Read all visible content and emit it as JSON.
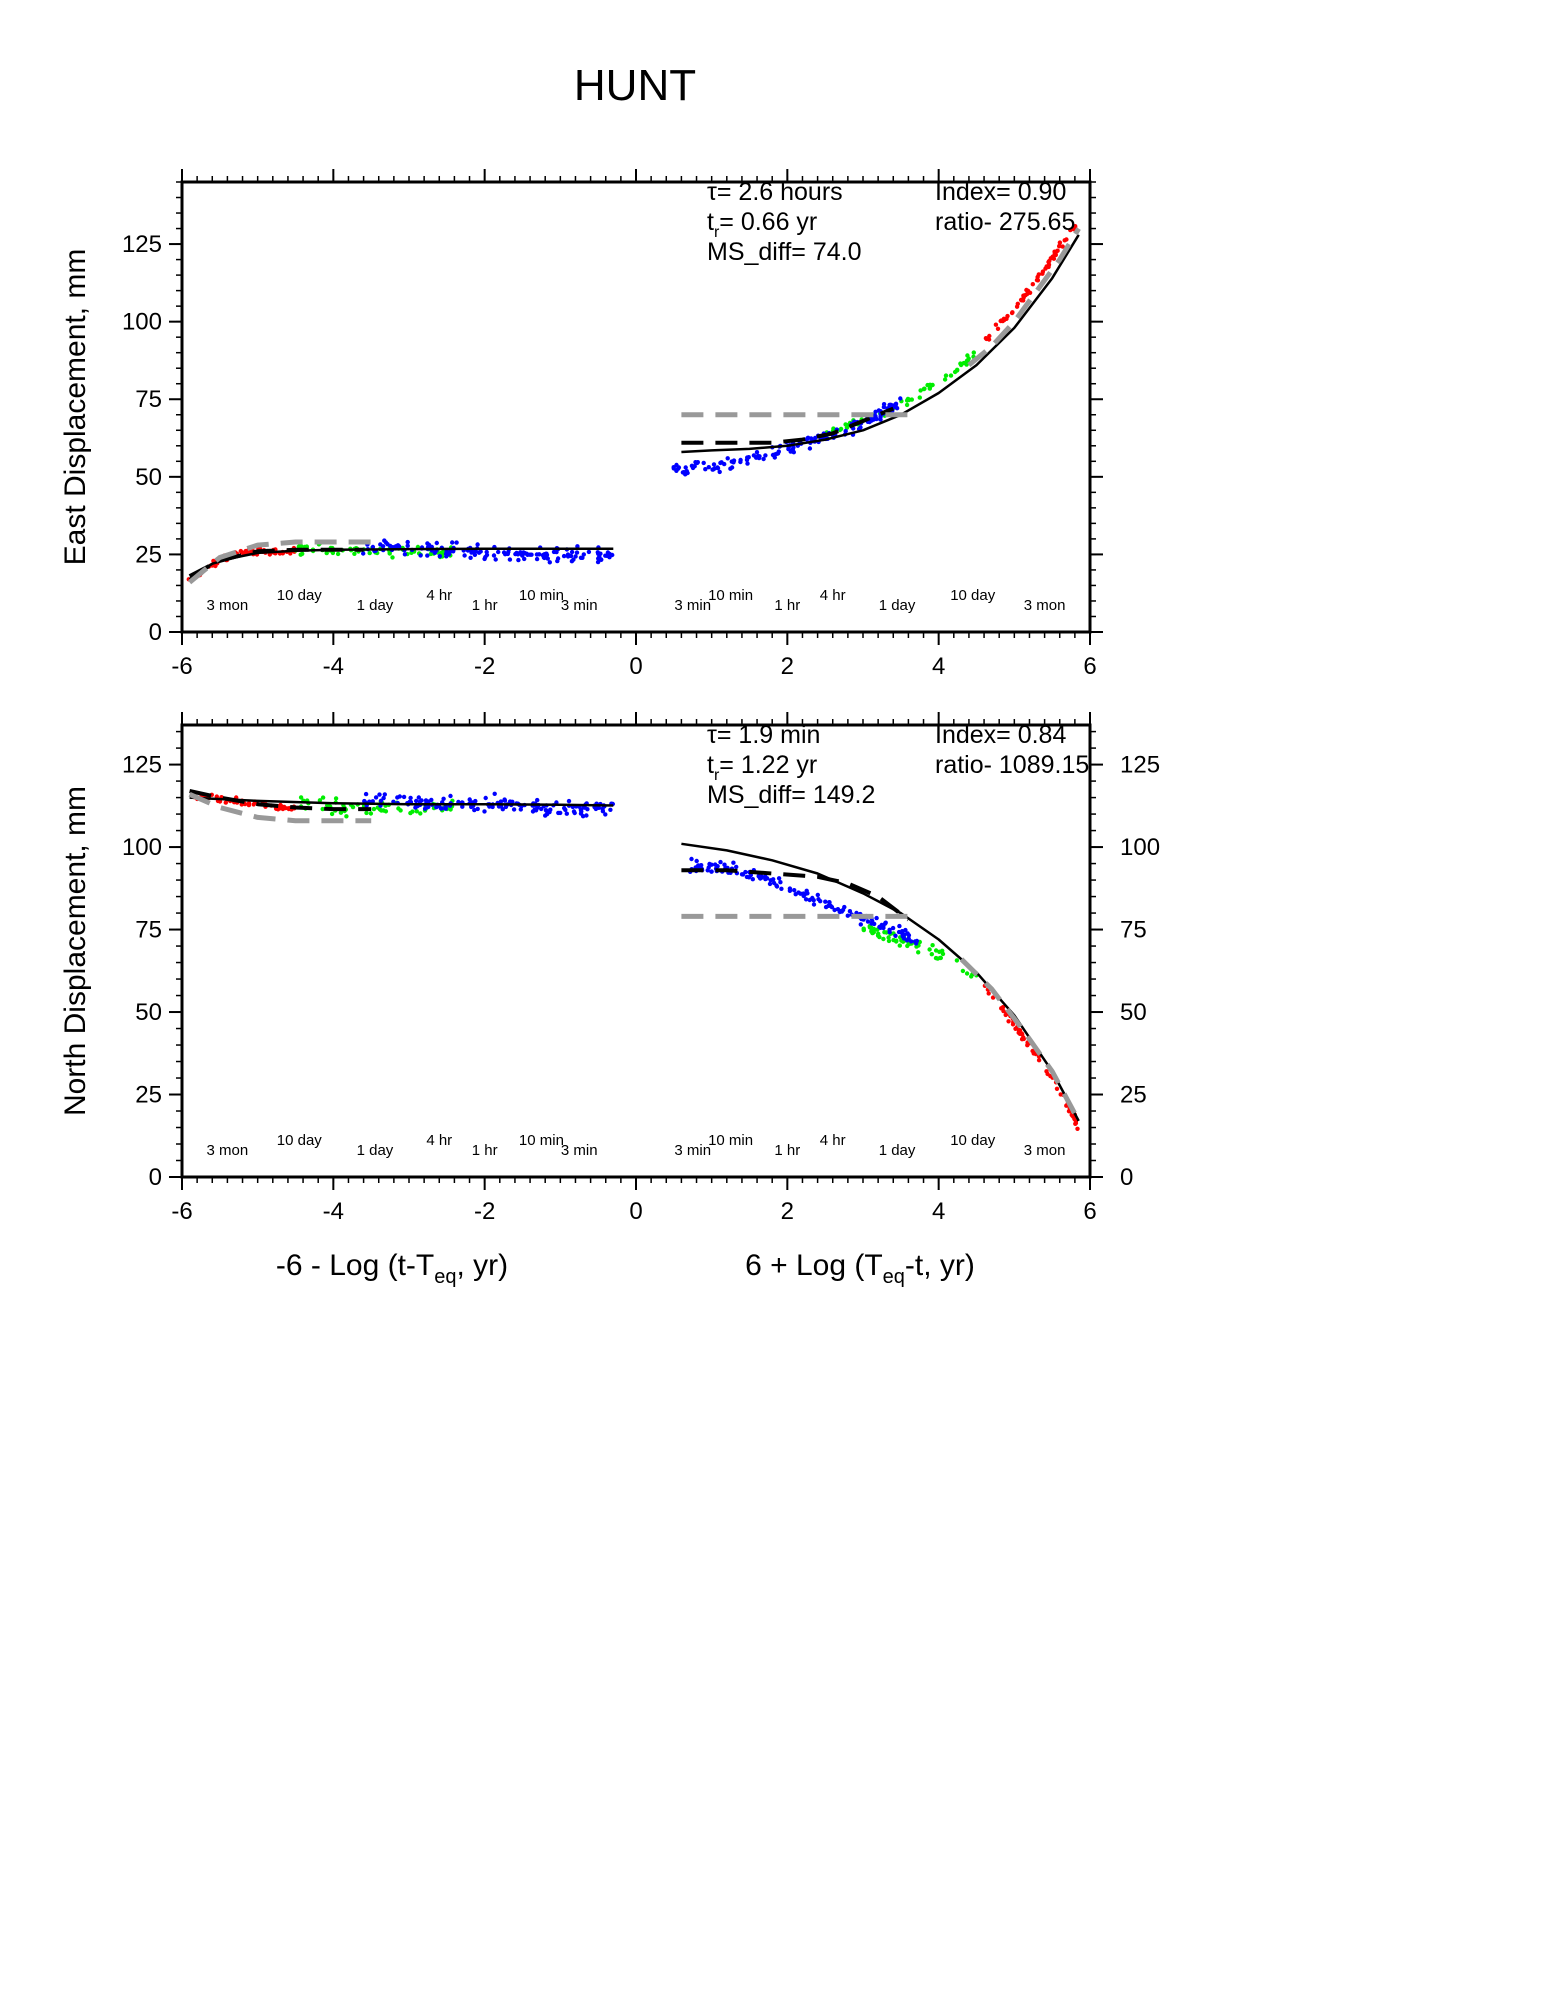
{
  "figure": {
    "title": "HUNT"
  },
  "chart_data": [
    {
      "type": "scatter",
      "ylabel": "East Displacement, mm",
      "xlim": [
        -6,
        6
      ],
      "ylim": [
        0,
        145
      ],
      "x_ticks": [
        -6,
        -4,
        -2,
        0,
        2,
        4,
        6
      ],
      "y_ticks": [
        0,
        25,
        50,
        75,
        100,
        125
      ],
      "annotations": {
        "tau": "τ= 2.6 hours",
        "tr_prefix": "t",
        "tr_sub": "r",
        "tr_value": "= 0.66 yr",
        "ms_diff": "MS_diff= 74.0",
        "index": "Index= 0.90",
        "ratio": "ratio- 275.65"
      },
      "time_labels": [
        {
          "x": -5.4,
          "label": "3 mon",
          "row": "low"
        },
        {
          "x": -4.45,
          "label": "10 day",
          "row": "high"
        },
        {
          "x": -3.45,
          "label": "1 day",
          "row": "low"
        },
        {
          "x": -2.6,
          "label": "4 hr",
          "row": "high"
        },
        {
          "x": -2.0,
          "label": "1 hr",
          "row": "low"
        },
        {
          "x": -1.25,
          "label": "10 min",
          "row": "high"
        },
        {
          "x": -0.75,
          "label": "3 min",
          "row": "low"
        },
        {
          "x": 0.75,
          "label": "3 min",
          "row": "low"
        },
        {
          "x": 1.25,
          "label": "10 min",
          "row": "high"
        },
        {
          "x": 2.0,
          "label": "1 hr",
          "row": "low"
        },
        {
          "x": 2.6,
          "label": "4 hr",
          "row": "high"
        },
        {
          "x": 3.45,
          "label": "1 day",
          "row": "low"
        },
        {
          "x": 4.45,
          "label": "10 day",
          "row": "high"
        },
        {
          "x": 5.4,
          "label": "3 mon",
          "row": "low"
        }
      ],
      "series": [
        {
          "color": "#ff0000",
          "segments": [
            {
              "x": [
                -5.9,
                -5.7,
                -5.5,
                -5.3,
                -5.1,
                -4.9,
                -4.7,
                -4.5
              ],
              "y": [
                16,
                20,
                23,
                25,
                26,
                26,
                26,
                26
              ],
              "jitter": 1.5,
              "n": 70
            },
            {
              "x": [
                4.6,
                4.8,
                5.0,
                5.2,
                5.4,
                5.6,
                5.8
              ],
              "y": [
                94,
                99,
                104,
                110,
                117,
                124,
                131
              ],
              "jitter": 1.5,
              "n": 60
            }
          ]
        },
        {
          "color": "#00ee00",
          "segments": [
            {
              "x": [
                -4.5,
                -4.2,
                -3.9,
                -3.6,
                -3.3,
                -3.0,
                -2.7,
                -2.4
              ],
              "y": [
                27,
                27,
                26,
                27,
                26,
                26,
                26,
                26
              ],
              "jitter": 2.5,
              "n": 70
            },
            {
              "x": [
                2.5,
                2.8,
                3.1,
                3.4,
                3.7,
                4.0,
                4.3,
                4.5
              ],
              "y": [
                64,
                66,
                69,
                72,
                76,
                81,
                86,
                90
              ],
              "jitter": 2.0,
              "n": 60
            }
          ]
        },
        {
          "color": "#0000ff",
          "segments": [
            {
              "x": [
                -3.6,
                -3.3,
                -3.0,
                -2.7,
                -2.4,
                -2.1,
                -1.8,
                -1.5,
                -1.2,
                -0.9,
                -0.6,
                -0.3
              ],
              "y": [
                27,
                28,
                27,
                26,
                26,
                26,
                25,
                25,
                25,
                25,
                25,
                25
              ],
              "jitter": 3.5,
              "n": 150
            },
            {
              "x": [
                0.5,
                0.8,
                1.1,
                1.4,
                1.7,
                2.0,
                2.3,
                2.6,
                2.9,
                3.2,
                3.5
              ],
              "y": [
                52,
                53,
                53,
                55,
                57,
                59,
                61,
                63,
                66,
                70,
                74
              ],
              "jitter": 3.0,
              "n": 150
            }
          ]
        }
      ],
      "fits": [
        {
          "style": "solid",
          "color": "#000000",
          "x": [
            -5.9,
            -5.6,
            -5.3,
            -5.0,
            -4.5,
            -4.0,
            -3.0,
            -2.0,
            -1.0,
            -0.3
          ],
          "y": [
            17,
            22,
            24,
            25.5,
            26.2,
            26.5,
            26.7,
            26.8,
            26.8,
            26.8
          ]
        },
        {
          "style": "solid",
          "color": "#000000",
          "x": [
            0.6,
            1.0,
            1.5,
            2.0,
            2.5,
            3.0,
            3.5,
            4.0,
            4.5,
            5.0,
            5.5,
            5.85
          ],
          "y": [
            58,
            58.5,
            59,
            60,
            62,
            65,
            70,
            77,
            86,
            98,
            114,
            128
          ]
        },
        {
          "style": "dash",
          "color": "#000000",
          "x": [
            -5.9,
            -5.5,
            -5.0,
            -4.5,
            -4.0,
            -3.6
          ],
          "y": [
            18,
            23,
            26,
            26.5,
            26.5,
            26.5
          ]
        },
        {
          "style": "dash",
          "color": "#000000",
          "x": [
            0.6,
            1.2,
            1.8,
            2.2,
            2.6,
            3.0,
            3.4
          ],
          "y": [
            61,
            61,
            61,
            62,
            64,
            68,
            72
          ]
        },
        {
          "style": "dash",
          "color": "#999999",
          "x": [
            -5.9,
            -5.5,
            -5.0,
            -4.5,
            -4.0,
            -3.5
          ],
          "y": [
            16,
            24,
            28,
            29,
            29,
            29
          ]
        },
        {
          "style": "dash",
          "color": "#999999",
          "x": [
            0.6,
            1.5,
            2.3,
            3.0,
            3.6
          ],
          "y": [
            70,
            70,
            70,
            70,
            70
          ]
        },
        {
          "style": "dash",
          "color": "#999999",
          "x": [
            4.4,
            4.7,
            5.0,
            5.3,
            5.6,
            5.85
          ],
          "y": [
            86,
            92,
            100,
            110,
            120,
            130
          ]
        }
      ]
    },
    {
      "type": "scatter",
      "ylabel": "North Displacement, mm",
      "xlim": [
        -6,
        6
      ],
      "ylim": [
        0,
        137
      ],
      "x_ticks": [
        -6,
        -4,
        -2,
        0,
        2,
        4,
        6
      ],
      "y_ticks": [
        0,
        25,
        50,
        75,
        100,
        125
      ],
      "annotations": {
        "tau": "τ= 1.9 min",
        "tr_prefix": "t",
        "tr_sub": "r",
        "tr_value": "= 1.22 yr",
        "ms_diff": "MS_diff= 149.2",
        "index": "Index= 0.84",
        "ratio": "ratio- 1089.15"
      },
      "time_labels": [
        {
          "x": -5.4,
          "label": "3 mon",
          "row": "low"
        },
        {
          "x": -4.45,
          "label": "10 day",
          "row": "high"
        },
        {
          "x": -3.45,
          "label": "1 day",
          "row": "low"
        },
        {
          "x": -2.6,
          "label": "4 hr",
          "row": "high"
        },
        {
          "x": -2.0,
          "label": "1 hr",
          "row": "low"
        },
        {
          "x": -1.25,
          "label": "10 min",
          "row": "high"
        },
        {
          "x": -0.75,
          "label": "3 min",
          "row": "low"
        },
        {
          "x": 0.75,
          "label": "3 min",
          "row": "low"
        },
        {
          "x": 1.25,
          "label": "10 min",
          "row": "high"
        },
        {
          "x": 2.0,
          "label": "1 hr",
          "row": "low"
        },
        {
          "x": 2.6,
          "label": "4 hr",
          "row": "high"
        },
        {
          "x": 3.45,
          "label": "1 day",
          "row": "low"
        },
        {
          "x": 4.45,
          "label": "10 day",
          "row": "high"
        },
        {
          "x": 5.4,
          "label": "3 mon",
          "row": "low"
        }
      ],
      "series": [
        {
          "color": "#ff0000",
          "segments": [
            {
              "x": [
                -5.9,
                -5.6,
                -5.3,
                -5.0,
                -4.7,
                -4.5
              ],
              "y": [
                116,
                115,
                114,
                113,
                112,
                112
              ],
              "jitter": 1.5,
              "n": 60
            },
            {
              "x": [
                4.6,
                4.9,
                5.2,
                5.5,
                5.7,
                5.85
              ],
              "y": [
                58,
                49,
                40,
                30,
                22,
                15
              ],
              "jitter": 1.5,
              "n": 60
            }
          ]
        },
        {
          "color": "#00ee00",
          "segments": [
            {
              "x": [
                -4.5,
                -4.2,
                -3.9,
                -3.6,
                -3.3,
                -3.0,
                -2.7,
                -2.4
              ],
              "y": [
                113,
                113,
                112,
                112,
                112,
                112,
                112,
                112
              ],
              "jitter": 3.0,
              "n": 70
            },
            {
              "x": [
                3.0,
                3.3,
                3.6,
                3.9,
                4.2,
                4.5
              ],
              "y": [
                76,
                73,
                71,
                69,
                65,
                60
              ],
              "jitter": 2.5,
              "n": 60
            }
          ]
        },
        {
          "color": "#0000ff",
          "segments": [
            {
              "x": [
                -3.6,
                -3.3,
                -3.0,
                -2.7,
                -2.4,
                -2.1,
                -1.8,
                -1.5,
                -1.2,
                -0.9,
                -0.6,
                -0.3
              ],
              "y": [
                114,
                115,
                114,
                113,
                113,
                113,
                113,
                113,
                112,
                112,
                112,
                112
              ],
              "jitter": 3.5,
              "n": 150
            },
            {
              "x": [
                0.7,
                1.0,
                1.3,
                1.6,
                1.9,
                2.2,
                2.5,
                2.8,
                3.1,
                3.4,
                3.7
              ],
              "y": [
                94,
                94,
                93,
                91,
                89,
                86,
                83,
                80,
                78,
                75,
                72
              ],
              "jitter": 3.0,
              "n": 150
            }
          ]
        }
      ],
      "fits": [
        {
          "style": "solid",
          "color": "#000000",
          "x": [
            -5.9,
            -5.0,
            -4.0,
            -3.0,
            -2.0,
            -1.0,
            -0.3
          ],
          "y": [
            115,
            114,
            113.3,
            113,
            113,
            112.8,
            112.6
          ]
        },
        {
          "style": "solid",
          "color": "#000000",
          "x": [
            0.6,
            1.2,
            1.8,
            2.4,
            3.0,
            3.5,
            4.0,
            4.5,
            5.0,
            5.5,
            5.85
          ],
          "y": [
            101,
            99,
            96,
            92,
            86,
            80,
            72,
            62,
            49,
            32,
            17
          ]
        },
        {
          "style": "dash",
          "color": "#000000",
          "x": [
            -5.9,
            -5.5,
            -5.0,
            -4.5,
            -4.0,
            -3.5
          ],
          "y": [
            117,
            115,
            113,
            112,
            111.5,
            111.5
          ]
        },
        {
          "style": "dash",
          "color": "#000000",
          "x": [
            0.6,
            1.2,
            1.8,
            2.4,
            2.8,
            3.2,
            3.6
          ],
          "y": [
            93,
            93,
            92,
            91,
            89,
            85,
            78
          ]
        },
        {
          "style": "dash",
          "color": "#999999",
          "x": [
            -5.9,
            -5.5,
            -5.0,
            -4.5,
            -4.0,
            -3.5
          ],
          "y": [
            116,
            112,
            109,
            108,
            108,
            108
          ]
        },
        {
          "style": "dash",
          "color": "#999999",
          "x": [
            0.6,
            1.5,
            2.3,
            3.0,
            3.6
          ],
          "y": [
            79,
            79,
            79,
            79,
            79
          ]
        },
        {
          "style": "dash",
          "color": "#999999",
          "x": [
            4.3,
            4.7,
            5.1,
            5.5,
            5.85
          ],
          "y": [
            66,
            57,
            45,
            32,
            17
          ]
        }
      ]
    }
  ],
  "xaxis_labels": {
    "left_pre": "-6 - Log (t-T",
    "left_sub": "eq",
    "left_post": ", yr)",
    "right_pre": "6 + Log (T",
    "right_sub": "eq",
    "right_post": "-t, yr)"
  }
}
